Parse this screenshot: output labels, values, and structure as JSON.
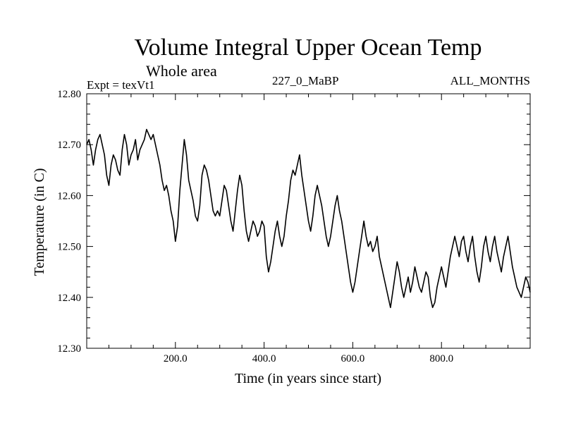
{
  "chart_data": {
    "type": "line",
    "title": "Volume Integral Upper Ocean Temp",
    "subtitle": "Whole area",
    "experiment_label": "Expt = texVt1",
    "period_label": "227_0_MaBP",
    "months_label": "ALL_MONTHS",
    "xlabel": "Time (in years since start)",
    "ylabel": "Temperature (in C)",
    "xlim": [
      0,
      1000
    ],
    "ylim": [
      12.3,
      12.8
    ],
    "x_ticks": [
      200,
      400,
      600,
      800
    ],
    "x_tick_labels": [
      "200.0",
      "400.0",
      "600.0",
      "800.0"
    ],
    "y_ticks": [
      12.3,
      12.4,
      12.5,
      12.6,
      12.7,
      12.8
    ],
    "y_tick_labels": [
      "12.30",
      "12.40",
      "12.50",
      "12.60",
      "12.70",
      "12.80"
    ],
    "grid": false,
    "series": [
      {
        "name": "texVt1",
        "color": "#000000",
        "x": [
          0,
          5,
          10,
          15,
          20,
          25,
          30,
          35,
          40,
          45,
          50,
          55,
          60,
          65,
          70,
          75,
          80,
          85,
          90,
          95,
          100,
          105,
          110,
          115,
          120,
          125,
          130,
          135,
          140,
          145,
          150,
          155,
          160,
          165,
          170,
          175,
          180,
          185,
          190,
          195,
          200,
          205,
          210,
          215,
          220,
          225,
          230,
          235,
          240,
          245,
          250,
          255,
          260,
          265,
          270,
          275,
          280,
          285,
          290,
          295,
          300,
          305,
          310,
          315,
          320,
          325,
          330,
          335,
          340,
          345,
          350,
          355,
          360,
          365,
          370,
          375,
          380,
          385,
          390,
          395,
          400,
          405,
          410,
          415,
          420,
          425,
          430,
          435,
          440,
          445,
          450,
          455,
          460,
          465,
          470,
          475,
          480,
          485,
          490,
          495,
          500,
          505,
          510,
          515,
          520,
          525,
          530,
          535,
          540,
          545,
          550,
          555,
          560,
          565,
          570,
          575,
          580,
          585,
          590,
          595,
          600,
          605,
          610,
          615,
          620,
          625,
          630,
          635,
          640,
          645,
          650,
          655,
          660,
          665,
          670,
          675,
          680,
          685,
          690,
          695,
          700,
          705,
          710,
          715,
          720,
          725,
          730,
          735,
          740,
          745,
          750,
          755,
          760,
          765,
          770,
          775,
          780,
          785,
          790,
          795,
          800,
          805,
          810,
          815,
          820,
          825,
          830,
          835,
          840,
          845,
          850,
          855,
          860,
          865,
          870,
          875,
          880,
          885,
          890,
          895,
          900,
          905,
          910,
          915,
          920,
          925,
          930,
          935,
          940,
          945,
          950,
          955,
          960,
          965,
          970,
          975,
          980,
          985,
          990,
          995,
          1000
        ],
        "values": [
          12.7,
          12.71,
          12.69,
          12.66,
          12.69,
          12.71,
          12.72,
          12.7,
          12.68,
          12.64,
          12.62,
          12.66,
          12.68,
          12.67,
          12.65,
          12.64,
          12.69,
          12.72,
          12.7,
          12.66,
          12.68,
          12.69,
          12.71,
          12.67,
          12.69,
          12.7,
          12.71,
          12.73,
          12.72,
          12.71,
          12.72,
          12.7,
          12.68,
          12.66,
          12.63,
          12.61,
          12.62,
          12.6,
          12.57,
          12.55,
          12.51,
          12.54,
          12.61,
          12.66,
          12.71,
          12.68,
          12.63,
          12.61,
          12.59,
          12.56,
          12.55,
          12.58,
          12.64,
          12.66,
          12.65,
          12.63,
          12.6,
          12.57,
          12.56,
          12.57,
          12.56,
          12.59,
          12.62,
          12.61,
          12.58,
          12.55,
          12.53,
          12.57,
          12.61,
          12.64,
          12.62,
          12.57,
          12.53,
          12.51,
          12.53,
          12.55,
          12.54,
          12.52,
          12.53,
          12.55,
          12.54,
          12.48,
          12.45,
          12.47,
          12.5,
          12.53,
          12.55,
          12.52,
          12.5,
          12.52,
          12.56,
          12.59,
          12.63,
          12.65,
          12.64,
          12.66,
          12.68,
          12.64,
          12.61,
          12.58,
          12.55,
          12.53,
          12.56,
          12.6,
          12.62,
          12.6,
          12.58,
          12.55,
          12.52,
          12.5,
          12.52,
          12.55,
          12.58,
          12.6,
          12.57,
          12.55,
          12.52,
          12.49,
          12.46,
          12.43,
          12.41,
          12.43,
          12.46,
          12.49,
          12.52,
          12.55,
          12.52,
          12.5,
          12.51,
          12.49,
          12.5,
          12.52,
          12.48,
          12.46,
          12.44,
          12.42,
          12.4,
          12.38,
          12.41,
          12.44,
          12.47,
          12.45,
          12.42,
          12.4,
          12.42,
          12.44,
          12.41,
          12.43,
          12.46,
          12.44,
          12.42,
          12.41,
          12.43,
          12.45,
          12.44,
          12.4,
          12.38,
          12.39,
          12.42,
          12.44,
          12.46,
          12.44,
          12.42,
          12.45,
          12.48,
          12.5,
          12.52,
          12.5,
          12.48,
          12.51,
          12.52,
          12.49,
          12.47,
          12.5,
          12.52,
          12.48,
          12.45,
          12.43,
          12.46,
          12.5,
          12.52,
          12.49,
          12.47,
          12.5,
          12.52,
          12.49,
          12.47,
          12.45,
          12.48,
          12.5,
          12.52,
          12.49,
          12.46,
          12.44,
          12.42,
          12.41,
          12.4,
          12.42,
          12.44,
          12.43,
          12.41
        ]
      }
    ]
  }
}
